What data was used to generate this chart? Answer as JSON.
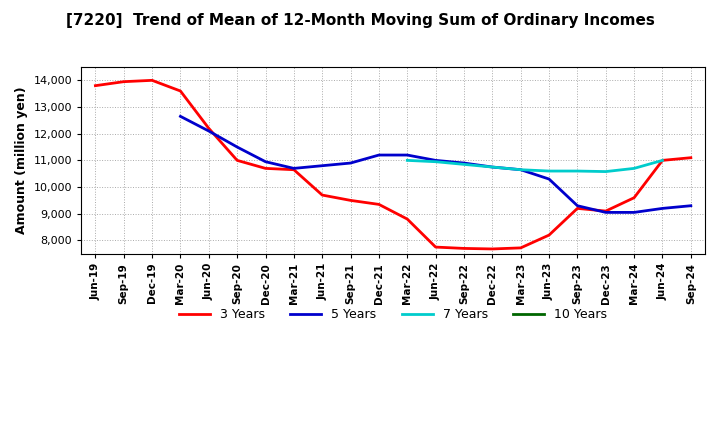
{
  "title": "[7220]  Trend of Mean of 12-Month Moving Sum of Ordinary Incomes",
  "ylabel": "Amount (million yen)",
  "ylim": [
    7500,
    14500
  ],
  "yticks": [
    8000,
    9000,
    10000,
    11000,
    12000,
    13000,
    14000
  ],
  "background_color": "#ffffff",
  "plot_background": "#ffffff",
  "x_labels": [
    "Jun-19",
    "Sep-19",
    "Dec-19",
    "Mar-20",
    "Jun-20",
    "Sep-20",
    "Dec-20",
    "Mar-21",
    "Jun-21",
    "Sep-21",
    "Dec-21",
    "Mar-22",
    "Jun-22",
    "Sep-22",
    "Dec-22",
    "Mar-23",
    "Jun-23",
    "Sep-23",
    "Dec-23",
    "Mar-24",
    "Jun-24",
    "Sep-24"
  ],
  "series": {
    "3 Years": {
      "color": "#ff0000",
      "data": [
        13800,
        13950,
        14000,
        13600,
        12200,
        11000,
        10700,
        10650,
        9700,
        9500,
        9350,
        8800,
        7750,
        7700,
        7680,
        7720,
        8200,
        9200,
        9100,
        9600,
        11000,
        11100
      ]
    },
    "5 Years": {
      "color": "#0000cc",
      "data": [
        null,
        null,
        null,
        12650,
        12100,
        11500,
        10950,
        10700,
        10800,
        10900,
        11200,
        11200,
        11000,
        10900,
        10750,
        10650,
        10300,
        9300,
        9050,
        9050,
        9200,
        9300
      ]
    },
    "7 Years": {
      "color": "#00cccc",
      "data": [
        null,
        null,
        null,
        null,
        null,
        null,
        null,
        null,
        null,
        null,
        null,
        11000,
        10950,
        10850,
        10750,
        10650,
        10600,
        10600,
        10580,
        10700,
        11000,
        null
      ]
    },
    "10 Years": {
      "color": "#006600",
      "data": [
        null,
        null,
        null,
        null,
        null,
        null,
        null,
        null,
        null,
        null,
        null,
        null,
        null,
        null,
        null,
        null,
        null,
        null,
        null,
        null,
        null,
        null
      ]
    }
  }
}
